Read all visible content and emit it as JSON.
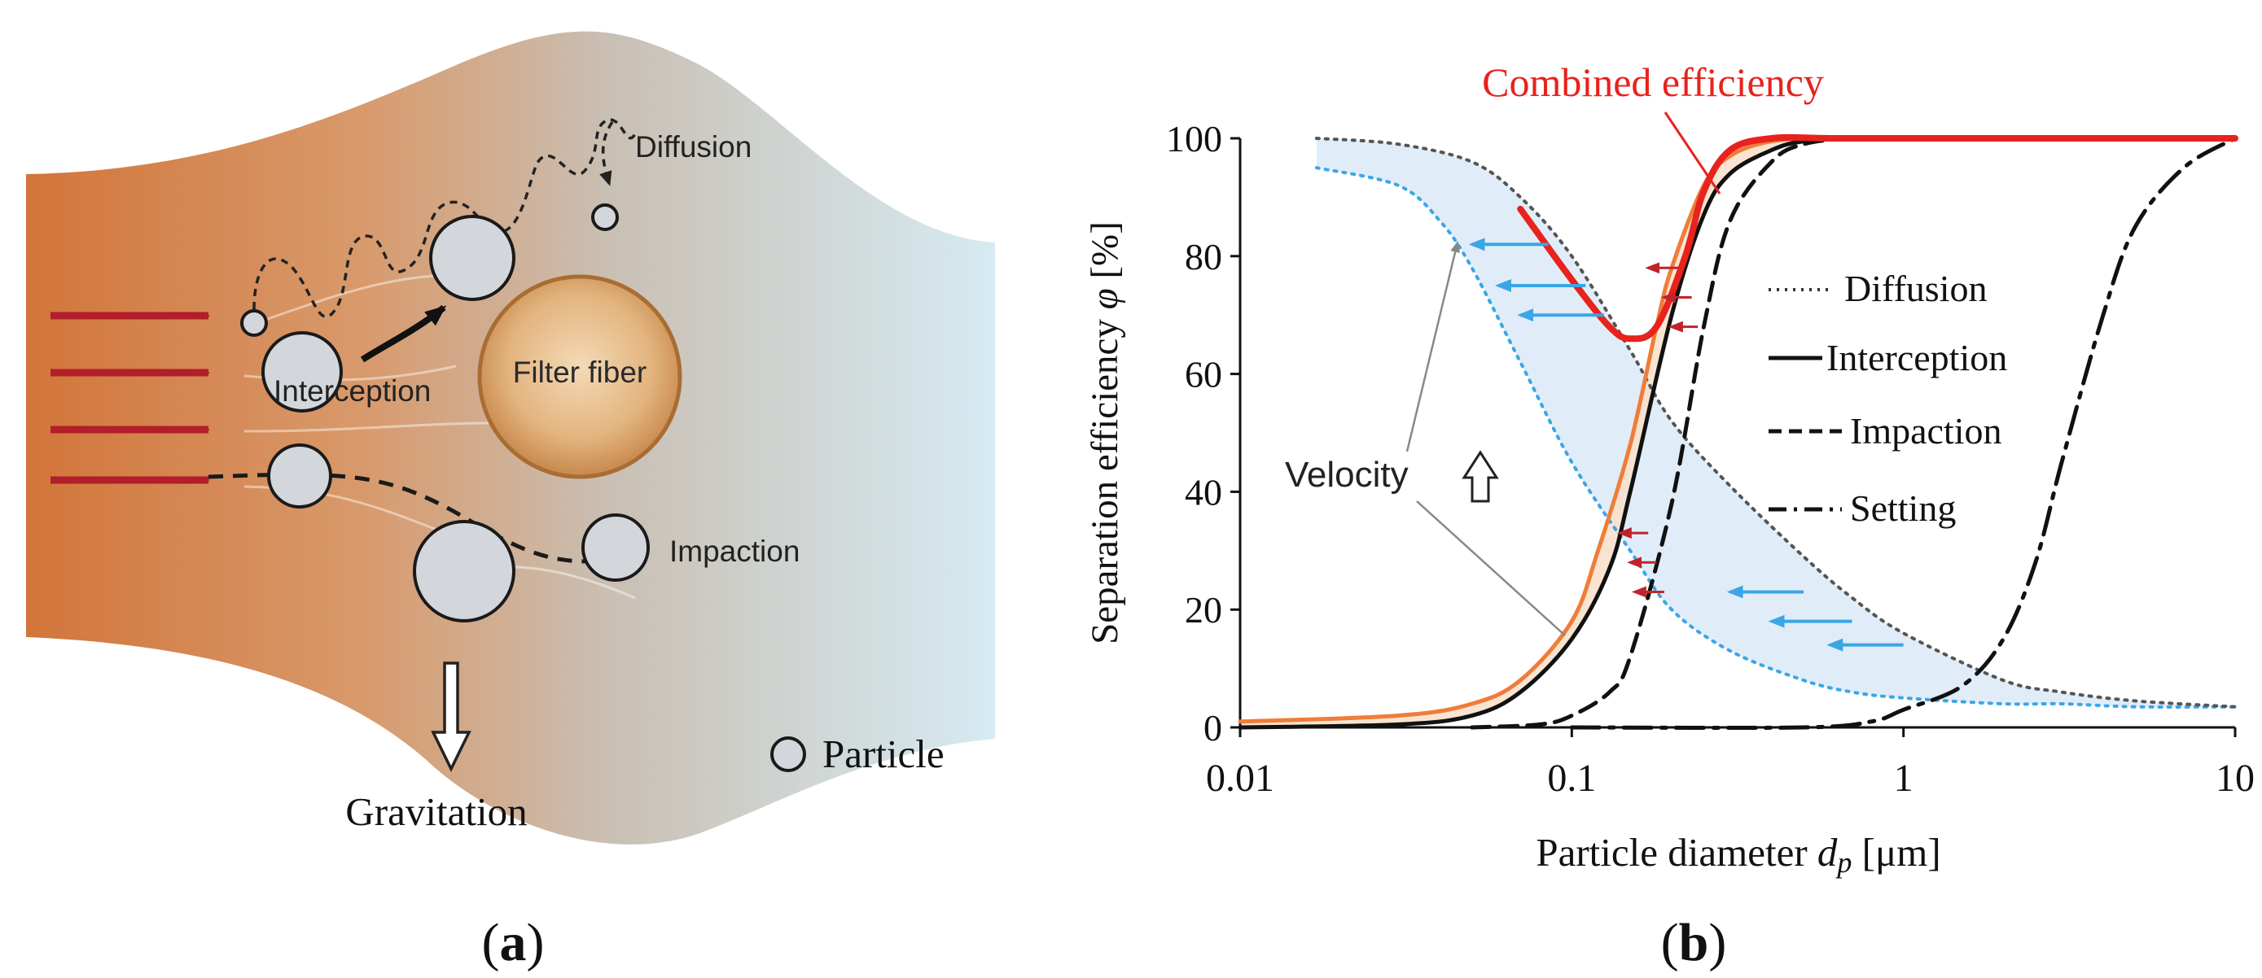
{
  "panel_a": {
    "labels": {
      "diffusion": "Diffusion",
      "interception": "Interception",
      "fiber": "Filter fiber",
      "impaction": "Impaction",
      "gravitation": "Gravitation",
      "particle_legend": "Particle"
    },
    "caption_open": "(",
    "caption_letter": "a",
    "caption_close": ")",
    "colors": {
      "flow_left": "#d2753a",
      "flow_mid": "#c9b7a2",
      "flow_right": "#cfe6ee",
      "fiber_center": "#f3d5ae",
      "fiber_edge": "#c7884b",
      "particle_fill": "#d3d7dc",
      "arrow_red": "#b21e2a"
    }
  },
  "panel_b": {
    "caption_open": "(",
    "caption_letter": "b",
    "caption_close": ")",
    "annotations": {
      "combined": "Combined efficiency",
      "velocity": "Velocity",
      "velocity_arrow_icon": "hollow-up-arrow"
    },
    "colors": {
      "combined": "#e8221d",
      "orange": "#ef7d3a",
      "blue": "#3aa6e6",
      "blue_fill": "#dbeaf7",
      "orange_fill": "#f8dfc9",
      "red_arrows": "#c0242b"
    },
    "chart_data": {
      "type": "line",
      "xscale": "log",
      "xlim": [
        0.01,
        10
      ],
      "ylim": [
        0,
        100
      ],
      "xticks": [
        0.01,
        0.1,
        1,
        10
      ],
      "xtick_labels": [
        "0.01",
        "0.1",
        "1",
        "10"
      ],
      "yticks": [
        0,
        20,
        40,
        60,
        80,
        100
      ],
      "ytick_labels": [
        "0",
        "20",
        "40",
        "60",
        "80",
        "100"
      ],
      "xlabel_main": "Particle diameter ",
      "xlabel_var": "d",
      "xlabel_sub": "p",
      "xlabel_unit": " [μm]",
      "ylabel_main": "Separation efficiency ",
      "ylabel_var": "φ",
      "ylabel_unit": " [%]",
      "legend": [
        "Diffusion",
        "Interception",
        "Impaction",
        "Setting"
      ],
      "series": [
        {
          "name": "Diffusion",
          "style": "dotted",
          "color": "#555555",
          "x": [
            0.017,
            0.03,
            0.05,
            0.07,
            0.1,
            0.15,
            0.2,
            0.3,
            0.5,
            0.7,
            1,
            2,
            3,
            5,
            10
          ],
          "y": [
            100,
            99,
            96,
            90,
            80,
            64,
            52,
            41,
            29,
            22,
            16,
            8,
            6,
            4.5,
            3.5
          ]
        },
        {
          "name": "Interception",
          "style": "solid",
          "color": "#111111",
          "x": [
            0.01,
            0.03,
            0.05,
            0.07,
            0.1,
            0.13,
            0.15,
            0.2,
            0.25,
            0.3,
            0.4,
            0.5,
            0.7,
            1,
            10
          ],
          "y": [
            0,
            0.5,
            2,
            6,
            15,
            27,
            40,
            70,
            87,
            94,
            98,
            99.5,
            100,
            100,
            100
          ]
        },
        {
          "name": "Impaction",
          "style": "dashed",
          "color": "#111111",
          "x": [
            0.05,
            0.08,
            0.1,
            0.13,
            0.15,
            0.2,
            0.25,
            0.3,
            0.4,
            0.5,
            0.7,
            1,
            10
          ],
          "y": [
            0,
            0.5,
            2,
            6,
            12,
            38,
            68,
            86,
            96,
            99,
            100,
            100,
            100
          ]
        },
        {
          "name": "Setting",
          "style": "dashdot",
          "color": "#111111",
          "x": [
            0.1,
            0.5,
            0.8,
            1,
            1.5,
            2,
            2.5,
            3,
            4,
            5,
            7,
            10
          ],
          "y": [
            0,
            0,
            1,
            3,
            7,
            15,
            28,
            45,
            70,
            85,
            95,
            100
          ]
        },
        {
          "name": "Combined efficiency",
          "style": "solid-thick",
          "color": "#e8221d",
          "x": [
            0.07,
            0.1,
            0.13,
            0.15,
            0.18,
            0.22,
            0.25,
            0.3,
            0.4,
            0.6,
            1,
            10
          ],
          "y": [
            88,
            76,
            68,
            66,
            68,
            80,
            91,
            98,
            100,
            100,
            100,
            100
          ]
        },
        {
          "name": "Interception (shifted)",
          "style": "solid",
          "color": "#ef7d3a",
          "x": [
            0.01,
            0.03,
            0.05,
            0.07,
            0.1,
            0.12,
            0.15,
            0.18,
            0.2,
            0.25,
            0.3,
            0.4,
            0.6,
            1,
            10
          ],
          "y": [
            1,
            2,
            4,
            8,
            18,
            30,
            48,
            68,
            78,
            92,
            97,
            99.5,
            100,
            100,
            100
          ]
        },
        {
          "name": "Diffusion (shifted)",
          "style": "dotted",
          "color": "#3aa6e6",
          "x": [
            0.017,
            0.03,
            0.04,
            0.05,
            0.07,
            0.1,
            0.15,
            0.2,
            0.3,
            0.5,
            0.7,
            1,
            2,
            3,
            5,
            10
          ],
          "y": [
            95,
            92,
            86,
            78,
            62,
            45,
            30,
            20,
            13,
            8,
            6,
            5,
            4,
            4,
            3.5,
            3.5
          ]
        }
      ],
      "shift_arrows": [
        {
          "color": "blue",
          "items": [
            [
              0.085,
              82,
              0.05
            ],
            [
              0.11,
              75,
              0.06
            ],
            [
              0.125,
              70,
              0.07
            ],
            [
              0.5,
              23,
              0.3
            ],
            [
              0.7,
              18,
              0.4
            ],
            [
              1.0,
              14,
              0.6
            ]
          ]
        },
        {
          "color": "red",
          "items": [
            [
              0.21,
              78,
              0.17
            ],
            [
              0.23,
              73,
              0.19
            ],
            [
              0.24,
              68,
              0.2
            ],
            [
              0.17,
              33,
              0.14
            ],
            [
              0.18,
              28,
              0.15
            ],
            [
              0.19,
              23,
              0.155
            ]
          ]
        }
      ]
    }
  }
}
